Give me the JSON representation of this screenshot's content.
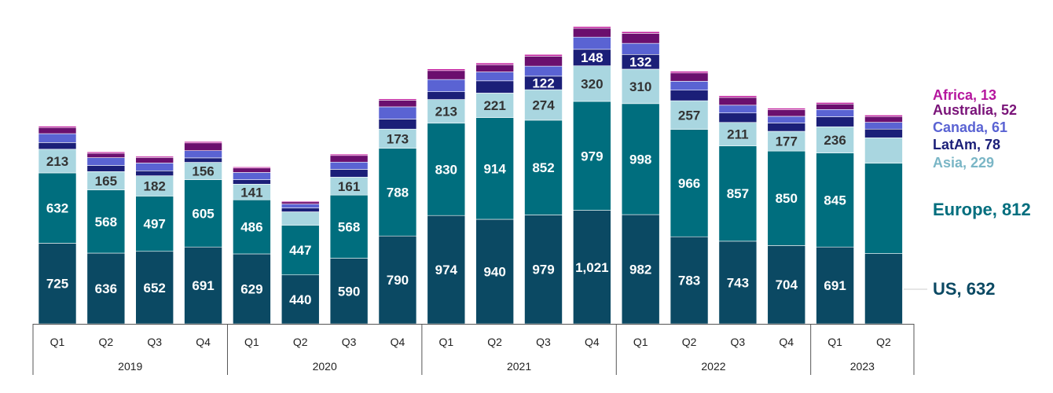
{
  "chart_data": {
    "type": "bar",
    "stacked": true,
    "categories": [
      "Q1",
      "Q2",
      "Q3",
      "Q4",
      "Q1",
      "Q2",
      "Q3",
      "Q4",
      "Q1",
      "Q2",
      "Q3",
      "Q4",
      "Q1",
      "Q2",
      "Q3",
      "Q4",
      "Q1",
      "Q2"
    ],
    "groups": [
      {
        "label": "2019",
        "count": 4
      },
      {
        "label": "2020",
        "count": 4
      },
      {
        "label": "2021",
        "count": 4
      },
      {
        "label": "2022",
        "count": 4
      },
      {
        "label": "2023",
        "count": 2
      }
    ],
    "series": [
      {
        "name": "US",
        "color": "#0b4963",
        "label_color": "#ffffff",
        "values": [
          725,
          636,
          652,
          691,
          629,
          440,
          590,
          790,
          974,
          940,
          979,
          1021,
          982,
          783,
          743,
          704,
          691,
          632
        ],
        "data_labels": [
          true,
          true,
          true,
          true,
          true,
          true,
          true,
          true,
          true,
          true,
          true,
          true,
          true,
          true,
          true,
          true,
          true,
          false
        ]
      },
      {
        "name": "Europe",
        "color": "#006e7e",
        "label_color": "#ffffff",
        "values": [
          632,
          568,
          497,
          605,
          486,
          447,
          568,
          788,
          830,
          914,
          852,
          979,
          998,
          966,
          857,
          850,
          845,
          812
        ],
        "data_labels": [
          true,
          true,
          true,
          true,
          true,
          true,
          true,
          true,
          true,
          true,
          true,
          true,
          true,
          true,
          true,
          true,
          true,
          false
        ]
      },
      {
        "name": "Asia",
        "color": "#a9d6e0",
        "label_color": "#333333",
        "legend_color": "#7ab6c6",
        "values": [
          213,
          165,
          182,
          156,
          141,
          120,
          161,
          173,
          213,
          221,
          274,
          320,
          310,
          257,
          211,
          177,
          236,
          229
        ],
        "data_labels": [
          true,
          true,
          true,
          true,
          true,
          false,
          true,
          true,
          true,
          true,
          true,
          true,
          true,
          true,
          true,
          true,
          true,
          false
        ]
      },
      {
        "name": "LatAm",
        "color": "#1b1f78",
        "label_color": "#ffffff",
        "values": [
          60,
          55,
          45,
          40,
          40,
          35,
          70,
          90,
          70,
          110,
          122,
          148,
          132,
          95,
          85,
          75,
          90,
          78
        ],
        "data_labels": [
          false,
          false,
          false,
          false,
          false,
          false,
          false,
          false,
          false,
          false,
          true,
          true,
          true,
          false,
          false,
          false,
          false,
          false
        ]
      },
      {
        "name": "Canada",
        "color": "#5a63d3",
        "label_color": "#ffffff",
        "values": [
          80,
          70,
          70,
          65,
          65,
          35,
          65,
          110,
          110,
          80,
          90,
          110,
          100,
          80,
          70,
          60,
          65,
          61
        ],
        "data_labels": [
          false,
          false,
          false,
          false,
          false,
          false,
          false,
          false,
          false,
          false,
          false,
          false,
          false,
          false,
          false,
          false,
          false,
          false
        ]
      },
      {
        "name": "Australia",
        "color": "#6b0f6e",
        "label_color": "#ffffff",
        "legend_color": "#7a1479",
        "values": [
          55,
          40,
          50,
          70,
          40,
          20,
          60,
          60,
          80,
          65,
          90,
          80,
          90,
          75,
          70,
          60,
          50,
          52
        ],
        "data_labels": [
          false,
          false,
          false,
          false,
          false,
          false,
          false,
          false,
          false,
          false,
          false,
          false,
          false,
          false,
          false,
          false,
          false,
          false
        ]
      },
      {
        "name": "Africa",
        "color": "#c0189b",
        "label_color": "#ffffff",
        "legend_color": "#b5179e",
        "values": [
          12,
          12,
          10,
          12,
          10,
          8,
          12,
          12,
          15,
          15,
          15,
          15,
          15,
          15,
          15,
          13,
          13,
          13
        ],
        "data_labels": [
          false,
          false,
          false,
          false,
          false,
          false,
          false,
          false,
          false,
          false,
          false,
          false,
          false,
          false,
          false,
          false,
          false,
          false
        ]
      }
    ],
    "legend": {
      "placement": "right",
      "entries": [
        {
          "text": "Africa, 13"
        },
        {
          "text": "Australia, 52"
        },
        {
          "text": "Canada, 61"
        },
        {
          "text": "LatAm, 78"
        },
        {
          "text": "Asia, 229"
        },
        {
          "text": "Europe, 812"
        },
        {
          "text": "US, 632"
        }
      ]
    },
    "title": "",
    "xlabel": "",
    "ylabel": "",
    "grid": false
  }
}
